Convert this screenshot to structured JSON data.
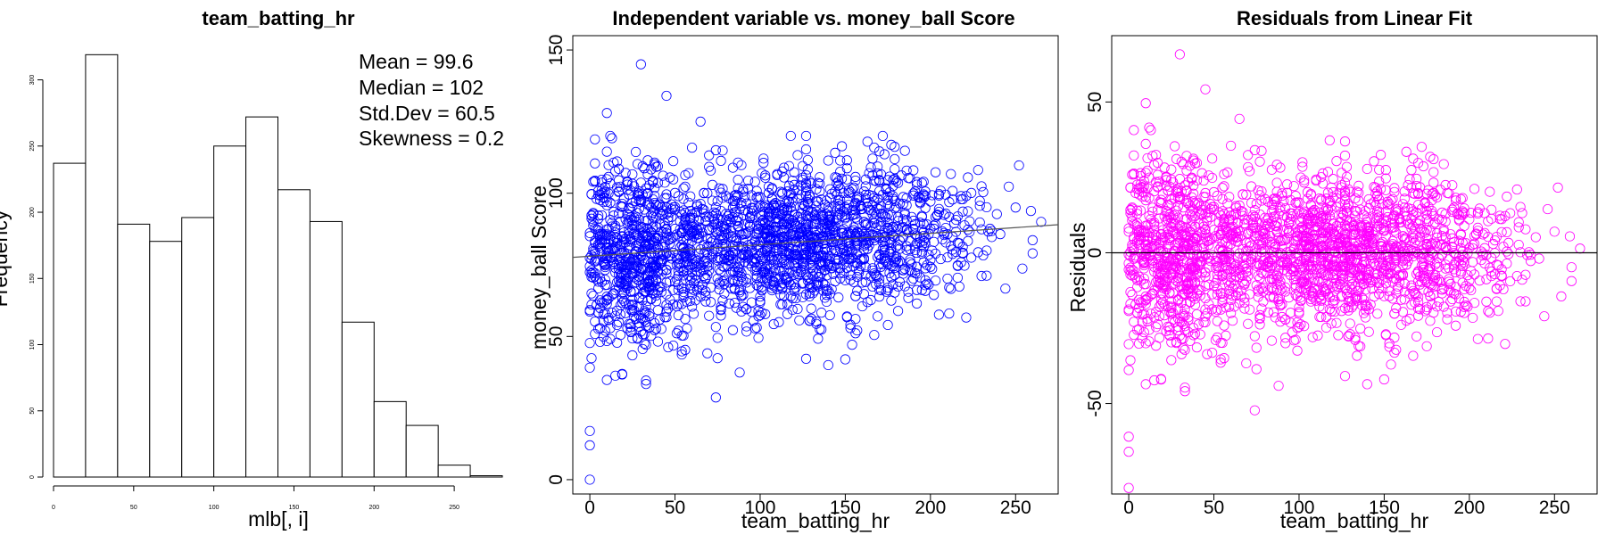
{
  "chart_data": [
    {
      "type": "bar",
      "title": "team_batting_hr",
      "xlabel": "mlb[, i]",
      "ylabel": "Frequency",
      "bin_edges": [
        0,
        20,
        40,
        60,
        80,
        100,
        120,
        140,
        160,
        180,
        200,
        220,
        240,
        260,
        280
      ],
      "values": [
        237,
        319,
        191,
        178,
        196,
        250,
        272,
        217,
        193,
        117,
        57,
        39,
        9,
        1
      ],
      "xlim": [
        0,
        280
      ],
      "ylim": [
        0,
        330
      ],
      "xticks": [
        0,
        50,
        100,
        150,
        200,
        250
      ],
      "yticks": [
        0,
        50,
        100,
        150,
        200,
        250,
        300
      ],
      "annotations": [
        "Mean = 99.6",
        "Median = 102",
        "Std.Dev = 60.5",
        "Skewness = 0.2"
      ],
      "colors": {
        "bar_fill": "#ffffff",
        "bar_stroke": "#000000"
      }
    },
    {
      "type": "scatter",
      "title": "Independent variable vs. money_ball Score",
      "xlabel": "team_batting_hr",
      "ylabel": "money_ball Score",
      "xlim": [
        -10,
        275
      ],
      "ylim": [
        -5,
        155
      ],
      "xticks": [
        0,
        50,
        100,
        150,
        200,
        250
      ],
      "yticks": [
        0,
        50,
        100,
        150
      ],
      "fit_line": {
        "intercept": 78.0,
        "slope": 0.04
      },
      "n_points": 2276,
      "seed": 12345,
      "sample_points": [
        [
          0,
          0
        ],
        [
          0,
          12
        ],
        [
          0,
          17
        ],
        [
          30,
          145
        ],
        [
          45,
          134
        ],
        [
          10,
          128
        ],
        [
          65,
          125
        ],
        [
          140,
          40
        ],
        [
          150,
          42
        ],
        [
          265,
          90
        ],
        [
          260,
          79
        ]
      ],
      "colors": {
        "points": "#0000ff",
        "fit_line": "#555555"
      }
    },
    {
      "type": "scatter",
      "title": "Residuals from Linear Fit",
      "xlabel": "team_batting_hr",
      "ylabel": "Residuals",
      "xlim": [
        -10,
        275
      ],
      "ylim": [
        -80,
        72
      ],
      "xticks": [
        0,
        50,
        100,
        150,
        200,
        250
      ],
      "yticks": [
        -50,
        0,
        50
      ],
      "zero_line": 0,
      "colors": {
        "points": "#ff00ff",
        "zero_line": "#000000"
      }
    }
  ]
}
